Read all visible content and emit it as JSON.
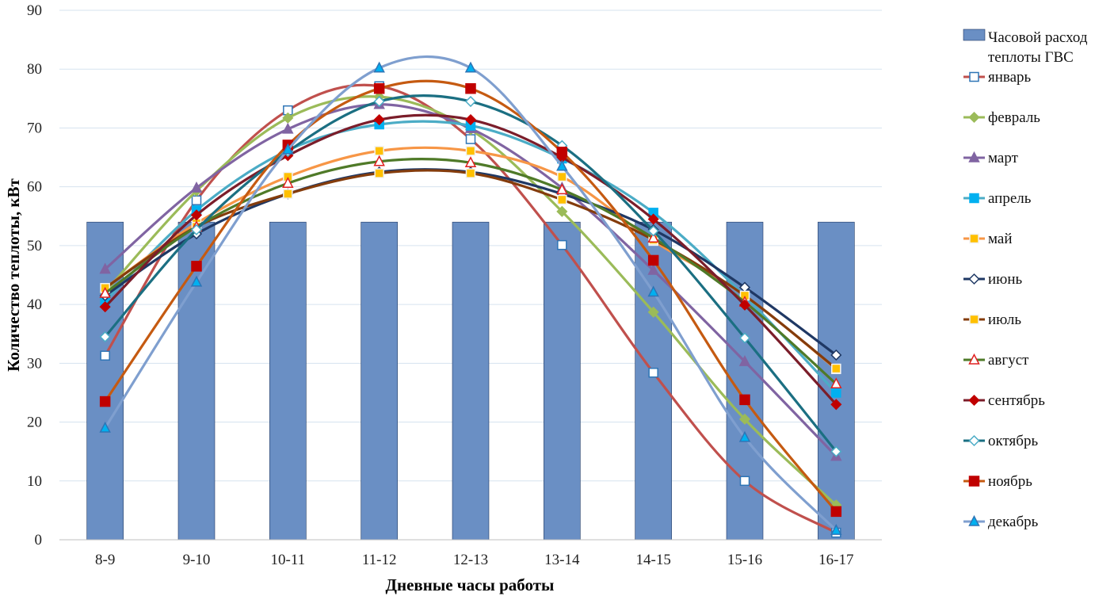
{
  "chart_data": {
    "type": "bar",
    "xlabel": "Дневные часы работы",
    "ylabel": "Количество теплоты, кВт",
    "categories": [
      "8-9",
      "9-10",
      "10-11",
      "11-12",
      "12-13",
      "13-14",
      "14-15",
      "15-16",
      "16-17"
    ],
    "ylim": [
      0,
      90
    ],
    "yticks": [
      0,
      10,
      20,
      30,
      40,
      50,
      60,
      70,
      80,
      90
    ],
    "grid": true,
    "legend_position": "right",
    "bar_series": {
      "name_lines": [
        "Часовой расход",
        "теплоты ГВС"
      ],
      "color": "#6a8fc4",
      "values": [
        54,
        54,
        54,
        54,
        54,
        54,
        54,
        54,
        54
      ]
    },
    "series": [
      {
        "name": "январь",
        "color": "#c0504d",
        "marker": "square-hollow",
        "values": [
          31.3,
          57.7,
          73,
          77.1,
          68.1,
          50.1,
          28.4,
          10,
          1.2
        ]
      },
      {
        "name": "февраль",
        "color": "#9bbb59",
        "marker": "diamond",
        "values": [
          42.1,
          59.3,
          71.7,
          75.3,
          69.7,
          55.8,
          38.7,
          20.5,
          5.9
        ]
      },
      {
        "name": "март",
        "color": "#8064a2",
        "marker": "triangle",
        "values": [
          46,
          59.8,
          69.8,
          74,
          69.9,
          59.8,
          45.8,
          30.3,
          14.2
        ]
      },
      {
        "name": "апрель",
        "color": "#4bacc6",
        "marker": "square",
        "values": [
          40.6,
          56,
          66.2,
          70.6,
          70.4,
          64.8,
          55.6,
          41.4,
          25
        ]
      },
      {
        "name": "май",
        "color": "#f79646",
        "marker": "square-yellow",
        "values": [
          42.8,
          53.8,
          61.7,
          66.1,
          66.1,
          61.7,
          50.8,
          41.5,
          29
        ]
      },
      {
        "name": "июнь",
        "color": "#1f3864",
        "marker": "diamond-hollow",
        "values": [
          41.5,
          52,
          58.8,
          62.5,
          62.5,
          58.8,
          52.7,
          42.9,
          31.4
        ]
      },
      {
        "name": "июль",
        "color": "#843c0c",
        "marker": "square-yellow-small",
        "values": [
          42.8,
          53.2,
          58.8,
          62.3,
          62.3,
          57.8,
          51,
          41.5,
          29.1
        ]
      },
      {
        "name": "август",
        "color": "#4f7a28",
        "marker": "triangle-hollow",
        "values": [
          41.9,
          53.2,
          60.6,
          64.3,
          64.1,
          59.5,
          51.3,
          40.4,
          26.5
        ]
      },
      {
        "name": "сентябрь",
        "color": "#7b1d2a",
        "marker": "diamond-red",
        "values": [
          39.6,
          55.2,
          65.3,
          71.4,
          71.4,
          65,
          54.5,
          39.9,
          23
        ]
      },
      {
        "name": "октябрь",
        "color": "#1b6f82",
        "marker": "diamond-hollow-cyan",
        "values": [
          34.5,
          52.7,
          66,
          74.5,
          74.5,
          67,
          52.5,
          34.3,
          15
        ]
      },
      {
        "name": "ноябрь",
        "color": "#c55a11",
        "marker": "square-red",
        "values": [
          23.5,
          46.5,
          67.1,
          76.7,
          76.7,
          65.9,
          47.5,
          23.8,
          4.8
        ]
      },
      {
        "name": "декабрь",
        "color": "#7f9fcf",
        "marker": "triangle-blue",
        "values": [
          19,
          43.8,
          66.3,
          80.2,
          80.2,
          63.5,
          42.1,
          17.4,
          1.6
        ]
      }
    ]
  }
}
